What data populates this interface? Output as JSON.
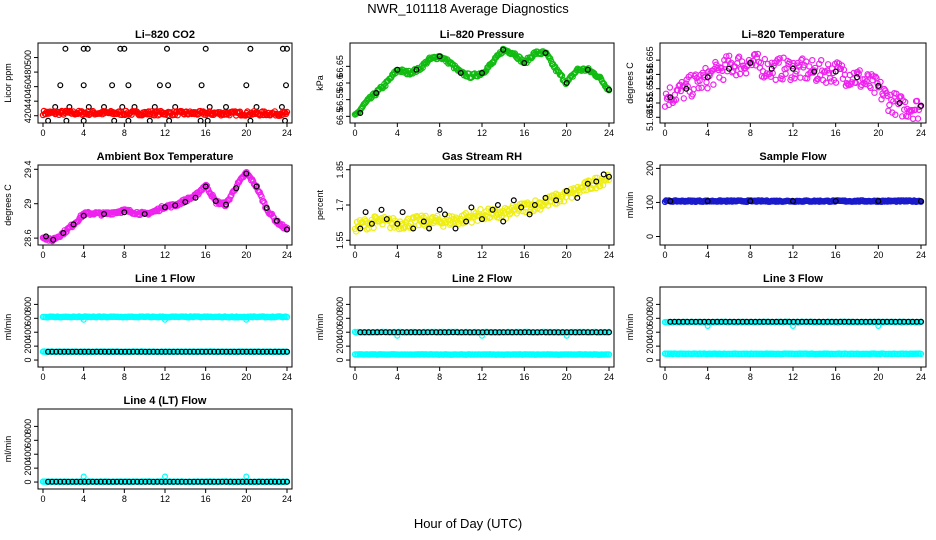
{
  "figure": {
    "title": "NWR_101118  Average Diagnostics",
    "xlabel": "Hour of Day (UTC)"
  },
  "chart_data": [
    {
      "type": "scatter",
      "title": "Li–820 CO2",
      "ylabel": "Licor ppm",
      "xlim": [
        0,
        24
      ],
      "xticks": [
        0,
        4,
        8,
        12,
        16,
        20,
        24
      ],
      "ylim": [
        410,
        520
      ],
      "yticks": [
        420,
        440,
        460,
        480,
        500
      ],
      "series": [
        {
          "name": "cycle",
          "style": "open",
          "color": "#000000",
          "x": [
            2.2,
            4.0,
            4.4,
            7.6,
            8.0,
            12.2,
            16.0,
            20.4,
            23.6,
            24.0
          ],
          "y": [
            512,
            512,
            512,
            512,
            512,
            512,
            512,
            512,
            512,
            512
          ]
        },
        {
          "name": "cycle",
          "style": "open",
          "color": "#000000",
          "x": [
            1.7,
            4.0,
            6.8,
            8.4,
            11.5,
            12.3,
            15.6,
            20.0,
            23.9
          ],
          "y": [
            462,
            462,
            462,
            462,
            462,
            462,
            462,
            462,
            462
          ]
        },
        {
          "name": "cycle",
          "style": "open",
          "color": "#000000",
          "x": [
            1.2,
            2.6,
            4.5,
            6.0,
            7.8,
            9.0,
            11.0,
            13.0,
            16.4,
            18.0,
            21.0,
            23.5
          ],
          "y": [
            432,
            432,
            432,
            432,
            432,
            432,
            432,
            432,
            432,
            432,
            432,
            432
          ]
        },
        {
          "name": "cycle",
          "style": "open",
          "color": "#000000",
          "x": [
            0.5,
            2.3,
            4.0,
            7.0,
            8.4,
            10.5,
            12.4,
            15.5,
            16.2,
            20.4,
            23.8
          ],
          "y": [
            413,
            413,
            413,
            413,
            413,
            413,
            413,
            413,
            413,
            413,
            413
          ]
        },
        {
          "name": "sample",
          "style": "band",
          "color": "#ff0000",
          "x": [
            0,
            24
          ],
          "y": [
            424,
            423
          ],
          "spread": 3
        }
      ]
    },
    {
      "type": "scatter",
      "title": "Li–820 Pressure",
      "ylabel": "kPa",
      "xlim": [
        0,
        24
      ],
      "xticks": [
        0,
        4,
        8,
        12,
        16,
        20,
        24
      ],
      "ylim": [
        66.48,
        66.72
      ],
      "yticks": [
        66.5,
        66.55,
        66.6,
        66.65
      ],
      "series": [
        {
          "name": "sample",
          "style": "band",
          "color": "#11bb11",
          "x": [
            0,
            1,
            2,
            3,
            4,
            5,
            6,
            7,
            8,
            9,
            10,
            11,
            12,
            13,
            14,
            15,
            16,
            17,
            18,
            19,
            20,
            21,
            22,
            23,
            24
          ],
          "y": [
            66.5,
            66.54,
            66.57,
            66.6,
            66.64,
            66.63,
            66.64,
            66.67,
            66.68,
            66.66,
            66.63,
            66.62,
            66.63,
            66.66,
            66.7,
            66.69,
            66.66,
            66.69,
            66.69,
            66.64,
            66.6,
            66.64,
            66.64,
            66.62,
            66.58
          ],
          "spread": 0.006
        },
        {
          "name": "cycle",
          "style": "open",
          "color": "#000000",
          "x": [
            0.5,
            2.0,
            4.0,
            5.8,
            8.0,
            10.0,
            12.0,
            14.0,
            16.0,
            18.0,
            20.0,
            22.0,
            24.0
          ],
          "y": [
            66.51,
            66.57,
            66.64,
            66.64,
            66.68,
            66.63,
            66.63,
            66.7,
            66.66,
            66.69,
            66.6,
            66.64,
            66.58
          ]
        }
      ]
    },
    {
      "type": "scatter",
      "title": "Li–820 Temperature",
      "ylabel": "degrees C",
      "xlim": [
        0,
        24
      ],
      "xticks": [
        0,
        4,
        8,
        12,
        16,
        20,
        24
      ],
      "ylim": [
        51.643,
        51.671
      ],
      "yticks": [
        51.645,
        51.65,
        51.655,
        51.66,
        51.665
      ],
      "series": [
        {
          "name": "sample",
          "style": "band",
          "color": "#ee22ee",
          "x": [
            0,
            2,
            4,
            6,
            8,
            10,
            12,
            14,
            16,
            18,
            20,
            21,
            22,
            24
          ],
          "y": [
            51.652,
            51.655,
            51.659,
            51.663,
            51.664,
            51.662,
            51.662,
            51.661,
            51.661,
            51.659,
            51.655,
            51.651,
            51.649,
            51.648
          ],
          "spread": 0.004
        },
        {
          "name": "cycle",
          "style": "open",
          "color": "#000000",
          "x": [
            0.5,
            2.0,
            4.0,
            6.0,
            8.0,
            10.0,
            12.0,
            14.0,
            16.0,
            18.0,
            20.0,
            22.0,
            24.0
          ],
          "y": [
            51.652,
            51.655,
            51.659,
            51.662,
            51.664,
            51.662,
            51.662,
            51.661,
            51.661,
            51.659,
            51.656,
            51.65,
            51.649
          ]
        }
      ]
    },
    {
      "type": "scatter",
      "title": "Ambient Box Temperature",
      "ylabel": "degrees C",
      "xlim": [
        0,
        24
      ],
      "xticks": [
        0,
        4,
        8,
        12,
        16,
        20,
        24
      ],
      "ylim": [
        28.52,
        29.45
      ],
      "yticks": [
        28.6,
        29.0,
        29.4
      ],
      "series": [
        {
          "name": "sample",
          "style": "band",
          "color": "#ee22ee",
          "x": [
            0,
            0.8,
            2,
            3,
            4,
            5,
            6,
            7,
            8,
            9,
            10,
            11,
            12,
            13,
            14,
            15,
            16,
            17,
            18,
            19,
            20,
            21,
            22,
            23,
            24
          ],
          "y": [
            28.62,
            28.57,
            28.66,
            28.76,
            28.88,
            28.89,
            28.88,
            28.9,
            28.92,
            28.9,
            28.88,
            28.91,
            28.97,
            28.98,
            29.04,
            29.09,
            29.22,
            29.02,
            28.99,
            29.2,
            29.36,
            29.2,
            28.94,
            28.79,
            28.7
          ],
          "spread": 0.02
        },
        {
          "name": "cycle",
          "style": "open",
          "color": "#000000",
          "x": [
            0.3,
            1.0,
            2.0,
            3.0,
            4.0,
            6.0,
            8.0,
            10.0,
            12.0,
            13.0,
            14.0,
            15.0,
            16.0,
            17.0,
            18.0,
            19.0,
            20.0,
            21.0,
            22.0,
            23.0,
            24.0
          ],
          "y": [
            28.62,
            28.58,
            28.66,
            28.76,
            28.86,
            28.88,
            28.9,
            28.88,
            28.96,
            28.98,
            29.02,
            29.07,
            29.2,
            29.03,
            28.99,
            29.18,
            29.35,
            29.2,
            28.95,
            28.8,
            28.7
          ]
        }
      ]
    },
    {
      "type": "scatter",
      "title": "Gas Stream RH",
      "ylabel": "percent",
      "xlim": [
        0,
        24
      ],
      "xticks": [
        0,
        4,
        8,
        12,
        16,
        20,
        24
      ],
      "ylim": [
        1.53,
        1.87
      ],
      "yticks": [
        1.55,
        1.7,
        1.85
      ],
      "series": [
        {
          "name": "sample",
          "style": "band",
          "color": "#eeee11",
          "x": [
            0,
            2,
            4,
            6,
            8,
            10,
            12,
            14,
            16,
            18,
            20,
            22,
            24
          ],
          "y": [
            1.61,
            1.63,
            1.62,
            1.63,
            1.63,
            1.64,
            1.66,
            1.66,
            1.69,
            1.71,
            1.74,
            1.78,
            1.82
          ],
          "spread": 0.025
        },
        {
          "name": "cycle",
          "style": "open",
          "color": "#000000",
          "x": [
            0.5,
            1.0,
            1.6,
            2.5,
            3.0,
            4.0,
            4.5,
            5.5,
            6.5,
            7.0,
            8.0,
            8.5,
            9.5,
            10.5,
            11.0,
            12.0,
            13.0,
            13.5,
            14.0,
            15.0,
            15.7,
            16.5,
            17.0,
            18.0,
            19.0,
            20.0,
            21.0,
            22.0,
            22.8,
            23.5,
            24.0
          ],
          "y": [
            1.6,
            1.67,
            1.62,
            1.68,
            1.64,
            1.62,
            1.67,
            1.6,
            1.63,
            1.6,
            1.68,
            1.66,
            1.6,
            1.63,
            1.69,
            1.64,
            1.68,
            1.7,
            1.63,
            1.72,
            1.69,
            1.66,
            1.7,
            1.73,
            1.72,
            1.76,
            1.73,
            1.79,
            1.8,
            1.83,
            1.82
          ]
        }
      ]
    },
    {
      "type": "scatter",
      "title": "Sample Flow",
      "ylabel": "ml/min",
      "xlim": [
        0,
        24
      ],
      "xticks": [
        0,
        4,
        8,
        12,
        16,
        20,
        24
      ],
      "ylim": [
        -25,
        210
      ],
      "yticks": [
        0,
        100,
        200
      ],
      "series": [
        {
          "name": "sample",
          "style": "band",
          "color": "#1a1acc",
          "x": [
            0,
            24
          ],
          "y": [
            104,
            104
          ],
          "spread": 2
        },
        {
          "name": "cycle",
          "style": "open",
          "color": "#000000",
          "x": [
            0.5,
            4.0,
            8.0,
            12.0,
            16.0,
            20.0,
            24.0
          ],
          "y": [
            104,
            104,
            104,
            104,
            104,
            104,
            104
          ]
        }
      ]
    },
    {
      "type": "scatter",
      "title": "Line 1 Flow",
      "ylabel": "ml/min",
      "xlim": [
        0,
        24
      ],
      "xticks": [
        0,
        4,
        8,
        12,
        16,
        20,
        24
      ],
      "ylim": [
        -100,
        1050
      ],
      "yticks": [
        0,
        200,
        400,
        600,
        800
      ],
      "series": [
        {
          "name": "line_open",
          "style": "dense",
          "color": "#00ffff",
          "x": [
            0,
            24
          ],
          "y": [
            620,
            620
          ],
          "spread": 6
        },
        {
          "name": "line_open",
          "style": "open",
          "color": "#00ffff",
          "x": [
            4.0,
            12.0,
            20.0
          ],
          "y": [
            580,
            580,
            580
          ]
        },
        {
          "name": "line_closed",
          "style": "dense",
          "color": "#00ffff",
          "x": [
            0,
            24
          ],
          "y": [
            120,
            120
          ],
          "spread": 3
        },
        {
          "name": "cycle",
          "style": "open",
          "color": "#000000",
          "x": [
            0.5,
            24
          ],
          "y": [
            120,
            120
          ],
          "count": 60
        }
      ]
    },
    {
      "type": "scatter",
      "title": "Line 2 Flow",
      "ylabel": "ml/min",
      "xlim": [
        0,
        24
      ],
      "xticks": [
        0,
        4,
        8,
        12,
        16,
        20,
        24
      ],
      "ylim": [
        -100,
        1050
      ],
      "yticks": [
        0,
        200,
        400,
        600,
        800
      ],
      "series": [
        {
          "name": "line_open",
          "style": "dense",
          "color": "#00ffff",
          "x": [
            0,
            24
          ],
          "y": [
            400,
            400
          ],
          "spread": 5
        },
        {
          "name": "line_open",
          "style": "open",
          "color": "#00ffff",
          "x": [
            4.0,
            12.0,
            20.0
          ],
          "y": [
            350,
            350,
            350
          ]
        },
        {
          "name": "line_closed",
          "style": "dense",
          "color": "#00ffff",
          "x": [
            0,
            24
          ],
          "y": [
            80,
            80
          ],
          "spread": 3
        },
        {
          "name": "cycle",
          "style": "open",
          "color": "#000000",
          "x": [
            0.5,
            24
          ],
          "y": [
            400,
            400
          ],
          "count": 60
        }
      ]
    },
    {
      "type": "scatter",
      "title": "Line 3 Flow",
      "ylabel": "ml/min",
      "xlim": [
        0,
        24
      ],
      "xticks": [
        0,
        4,
        8,
        12,
        16,
        20,
        24
      ],
      "ylim": [
        -100,
        1050
      ],
      "yticks": [
        0,
        200,
        400,
        600,
        800
      ],
      "series": [
        {
          "name": "line_open",
          "style": "dense",
          "color": "#00ffff",
          "x": [
            0,
            24
          ],
          "y": [
            545,
            545
          ],
          "spread": 5
        },
        {
          "name": "line_open",
          "style": "open",
          "color": "#00ffff",
          "x": [
            4.0,
            12.0,
            20.0
          ],
          "y": [
            490,
            490,
            490
          ]
        },
        {
          "name": "line_closed",
          "style": "dense",
          "color": "#00ffff",
          "x": [
            0,
            24
          ],
          "y": [
            90,
            90
          ],
          "spread": 3
        },
        {
          "name": "cycle",
          "style": "open",
          "color": "#000000",
          "x": [
            0.5,
            24
          ],
          "y": [
            550,
            550
          ],
          "count": 60
        }
      ]
    },
    {
      "type": "scatter",
      "title": "Line 4 (LT) Flow",
      "ylabel": "ml/min",
      "xlim": [
        0,
        24
      ],
      "xticks": [
        0,
        4,
        8,
        12,
        16,
        20,
        24
      ],
      "ylim": [
        -100,
        1050
      ],
      "yticks": [
        0,
        200,
        400,
        600,
        800
      ],
      "series": [
        {
          "name": "line_closed",
          "style": "dense",
          "color": "#00ffff",
          "x": [
            0,
            24
          ],
          "y": [
            5,
            5
          ],
          "spread": 3
        },
        {
          "name": "line_open",
          "style": "open",
          "color": "#00ffff",
          "x": [
            4.0,
            12.0,
            20.0
          ],
          "y": [
            80,
            80,
            80
          ]
        },
        {
          "name": "cycle",
          "style": "open",
          "color": "#000000",
          "x": [
            0.5,
            24
          ],
          "y": [
            5,
            5
          ],
          "count": 60
        }
      ]
    }
  ]
}
